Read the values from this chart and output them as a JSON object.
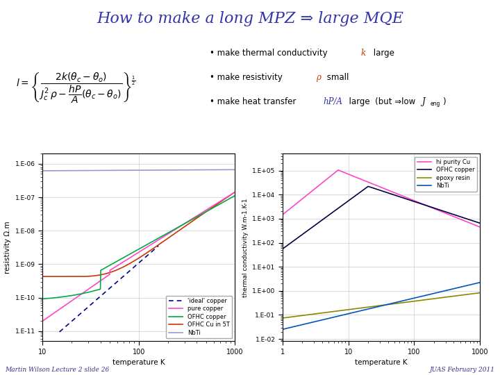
{
  "title": "How to make a long MPZ ⇒ large MQE",
  "title_color": "#3333aa",
  "title_fontsize": 16,
  "footer_left": "Martin Wilson Lecture 2 slide 26",
  "footer_right": "JUAS February 2011",
  "bg_color": "#ffffff",
  "plot1_xlabel": "temperature K",
  "plot1_ylabel": "resistivity Ω.m",
  "plot1_yticks": [
    "1.E-06",
    "1.E-07",
    "1.E-08",
    "1.E-09",
    "1.E-10",
    "1.E-11"
  ],
  "plot1_yvals": [
    1e-06,
    1e-07,
    1e-08,
    1e-09,
    1e-10,
    1e-11
  ],
  "plot2_xlabel": "temperature K",
  "plot2_ylabel": "thermal conductivity W.m-1.K-1",
  "plot2_yticks": [
    "1.E+05",
    "1.E+04",
    "1.E+03",
    "1.E+02",
    "1.E+01",
    "1.E+00",
    "1.E-01",
    "1.E-02"
  ],
  "plot2_yvals": [
    100000.0,
    10000.0,
    1000.0,
    100.0,
    10.0,
    1.0,
    0.1,
    0.01
  ],
  "nbti_color": "#9999cc",
  "ofhc5T_color": "#cc3300",
  "pure_cu_color": "#ff44cc",
  "ofhc_color": "#00aa44",
  "ideal_color": "#000088",
  "hi_pu_cu_color": "#ff44cc",
  "ofhc_tc_color": "#000044",
  "epoxy_color": "#888800",
  "nbti_tc_color": "#0055bb"
}
